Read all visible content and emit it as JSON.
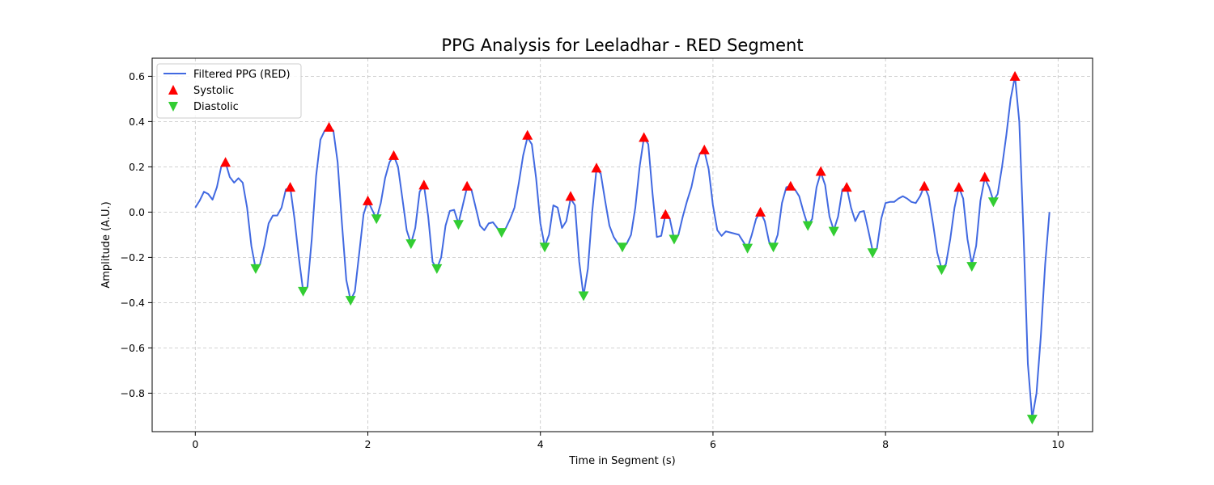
{
  "chart_data": {
    "type": "line",
    "title": "PPG Analysis for Leeladhar - RED Segment",
    "xlabel": "Time in Segment (s)",
    "ylabel": "Amplitude (A.U.)",
    "xlim": [
      -0.5,
      10.4
    ],
    "ylim": [
      -0.97,
      0.68
    ],
    "xticks": [
      0,
      2,
      4,
      6,
      8,
      10
    ],
    "xtick_labels": [
      "0",
      "2",
      "4",
      "6",
      "8",
      "10"
    ],
    "yticks": [
      -0.8,
      -0.6,
      -0.4,
      -0.2,
      0.0,
      0.2,
      0.4,
      0.6
    ],
    "ytick_labels": [
      "−0.8",
      "−0.6",
      "−0.4",
      "−0.2",
      "0.0",
      "0.2",
      "0.4",
      "0.6"
    ],
    "grid": true,
    "legend_position": "upper-left",
    "colors": {
      "line": "#4169e1",
      "systolic": "#ff0000",
      "diastolic": "#32cd32"
    },
    "series": [
      {
        "name": "Filtered PPG (RED)",
        "kind": "line",
        "points": [
          [
            0.0,
            0.02
          ],
          [
            0.05,
            0.05
          ],
          [
            0.1,
            0.09
          ],
          [
            0.15,
            0.08
          ],
          [
            0.2,
            0.055
          ],
          [
            0.25,
            0.11
          ],
          [
            0.3,
            0.2
          ],
          [
            0.35,
            0.22
          ],
          [
            0.4,
            0.155
          ],
          [
            0.45,
            0.13
          ],
          [
            0.5,
            0.15
          ],
          [
            0.55,
            0.13
          ],
          [
            0.6,
            0.02
          ],
          [
            0.65,
            -0.15
          ],
          [
            0.7,
            -0.25
          ],
          [
            0.75,
            -0.23
          ],
          [
            0.8,
            -0.15
          ],
          [
            0.85,
            -0.05
          ],
          [
            0.9,
            -0.015
          ],
          [
            0.95,
            -0.015
          ],
          [
            1.0,
            0.02
          ],
          [
            1.05,
            0.1
          ],
          [
            1.1,
            0.11
          ],
          [
            1.15,
            -0.03
          ],
          [
            1.2,
            -0.2
          ],
          [
            1.25,
            -0.35
          ],
          [
            1.3,
            -0.33
          ],
          [
            1.35,
            -0.12
          ],
          [
            1.4,
            0.16
          ],
          [
            1.45,
            0.32
          ],
          [
            1.5,
            0.36
          ],
          [
            1.55,
            0.375
          ],
          [
            1.6,
            0.36
          ],
          [
            1.65,
            0.22
          ],
          [
            1.7,
            -0.05
          ],
          [
            1.75,
            -0.3
          ],
          [
            1.8,
            -0.39
          ],
          [
            1.85,
            -0.35
          ],
          [
            1.9,
            -0.18
          ],
          [
            1.95,
            -0.01
          ],
          [
            2.0,
            0.05
          ],
          [
            2.05,
            0.01
          ],
          [
            2.1,
            -0.03
          ],
          [
            2.15,
            0.04
          ],
          [
            2.2,
            0.15
          ],
          [
            2.25,
            0.22
          ],
          [
            2.3,
            0.25
          ],
          [
            2.35,
            0.2
          ],
          [
            2.4,
            0.06
          ],
          [
            2.45,
            -0.08
          ],
          [
            2.5,
            -0.14
          ],
          [
            2.55,
            -0.07
          ],
          [
            2.6,
            0.09
          ],
          [
            2.65,
            0.12
          ],
          [
            2.7,
            -0.02
          ],
          [
            2.75,
            -0.22
          ],
          [
            2.8,
            -0.25
          ],
          [
            2.85,
            -0.2
          ],
          [
            2.9,
            -0.06
          ],
          [
            2.95,
            0.005
          ],
          [
            3.0,
            0.01
          ],
          [
            3.05,
            -0.05
          ],
          [
            3.1,
            0.03
          ],
          [
            3.15,
            0.11
          ],
          [
            3.2,
            0.1
          ],
          [
            3.25,
            0.02
          ],
          [
            3.3,
            -0.06
          ],
          [
            3.35,
            -0.08
          ],
          [
            3.4,
            -0.05
          ],
          [
            3.45,
            -0.045
          ],
          [
            3.5,
            -0.07
          ],
          [
            3.55,
            -0.09
          ],
          [
            3.6,
            -0.07
          ],
          [
            3.65,
            -0.03
          ],
          [
            3.7,
            0.02
          ],
          [
            3.75,
            0.13
          ],
          [
            3.8,
            0.25
          ],
          [
            3.85,
            0.33
          ],
          [
            3.9,
            0.3
          ],
          [
            3.95,
            0.15
          ],
          [
            4.0,
            -0.05
          ],
          [
            4.05,
            -0.15
          ],
          [
            4.1,
            -0.1
          ],
          [
            4.15,
            0.03
          ],
          [
            4.2,
            0.02
          ],
          [
            4.25,
            -0.07
          ],
          [
            4.3,
            -0.04
          ],
          [
            4.35,
            0.06
          ],
          [
            4.4,
            0.03
          ],
          [
            4.45,
            -0.22
          ],
          [
            4.5,
            -0.37
          ],
          [
            4.55,
            -0.25
          ],
          [
            4.6,
            0.0
          ],
          [
            4.65,
            0.19
          ],
          [
            4.7,
            0.17
          ],
          [
            4.75,
            0.05
          ],
          [
            4.8,
            -0.06
          ],
          [
            4.85,
            -0.11
          ],
          [
            4.9,
            -0.14
          ],
          [
            4.95,
            -0.155
          ],
          [
            5.0,
            -0.14
          ],
          [
            5.05,
            -0.1
          ],
          [
            5.1,
            0.02
          ],
          [
            5.15,
            0.2
          ],
          [
            5.2,
            0.33
          ],
          [
            5.25,
            0.3
          ],
          [
            5.3,
            0.08
          ],
          [
            5.35,
            -0.11
          ],
          [
            5.4,
            -0.105
          ],
          [
            5.45,
            -0.01
          ],
          [
            5.5,
            -0.03
          ],
          [
            5.55,
            -0.12
          ],
          [
            5.6,
            -0.1
          ],
          [
            5.65,
            -0.02
          ],
          [
            5.7,
            0.05
          ],
          [
            5.75,
            0.11
          ],
          [
            5.8,
            0.2
          ],
          [
            5.85,
            0.26
          ],
          [
            5.9,
            0.27
          ],
          [
            5.95,
            0.19
          ],
          [
            6.0,
            0.03
          ],
          [
            6.05,
            -0.08
          ],
          [
            6.1,
            -0.105
          ],
          [
            6.15,
            -0.085
          ],
          [
            6.2,
            -0.09
          ],
          [
            6.25,
            -0.095
          ],
          [
            6.3,
            -0.1
          ],
          [
            6.35,
            -0.13
          ],
          [
            6.4,
            -0.16
          ],
          [
            6.45,
            -0.1
          ],
          [
            6.5,
            -0.03
          ],
          [
            6.55,
            0.0
          ],
          [
            6.6,
            -0.04
          ],
          [
            6.65,
            -0.13
          ],
          [
            6.7,
            -0.155
          ],
          [
            6.75,
            -0.1
          ],
          [
            6.8,
            0.04
          ],
          [
            6.85,
            0.11
          ],
          [
            6.9,
            0.115
          ],
          [
            6.95,
            0.1
          ],
          [
            7.0,
            0.07
          ],
          [
            7.05,
            0.0
          ],
          [
            7.1,
            -0.06
          ],
          [
            7.15,
            -0.03
          ],
          [
            7.2,
            0.11
          ],
          [
            7.25,
            0.175
          ],
          [
            7.3,
            0.12
          ],
          [
            7.35,
            -0.02
          ],
          [
            7.4,
            -0.08
          ],
          [
            7.45,
            -0.02
          ],
          [
            7.5,
            0.1
          ],
          [
            7.55,
            0.11
          ],
          [
            7.6,
            0.02
          ],
          [
            7.65,
            -0.04
          ],
          [
            7.7,
            0.0
          ],
          [
            7.75,
            0.005
          ],
          [
            7.8,
            -0.08
          ],
          [
            7.85,
            -0.17
          ],
          [
            7.9,
            -0.16
          ],
          [
            7.95,
            -0.03
          ],
          [
            8.0,
            0.04
          ],
          [
            8.05,
            0.045
          ],
          [
            8.1,
            0.045
          ],
          [
            8.15,
            0.06
          ],
          [
            8.2,
            0.07
          ],
          [
            8.25,
            0.06
          ],
          [
            8.3,
            0.045
          ],
          [
            8.35,
            0.04
          ],
          [
            8.4,
            0.07
          ],
          [
            8.45,
            0.115
          ],
          [
            8.5,
            0.07
          ],
          [
            8.55,
            -0.05
          ],
          [
            8.6,
            -0.18
          ],
          [
            8.65,
            -0.25
          ],
          [
            8.7,
            -0.23
          ],
          [
            8.75,
            -0.12
          ],
          [
            8.8,
            0.02
          ],
          [
            8.85,
            0.11
          ],
          [
            8.9,
            0.06
          ],
          [
            8.95,
            -0.12
          ],
          [
            9.0,
            -0.23
          ],
          [
            9.05,
            -0.15
          ],
          [
            9.1,
            0.05
          ],
          [
            9.15,
            0.15
          ],
          [
            9.2,
            0.11
          ],
          [
            9.25,
            0.05
          ],
          [
            9.3,
            0.08
          ],
          [
            9.35,
            0.2
          ],
          [
            9.4,
            0.34
          ],
          [
            9.45,
            0.5
          ],
          [
            9.5,
            0.6
          ],
          [
            9.55,
            0.4
          ],
          [
            9.6,
            -0.1
          ],
          [
            9.65,
            -0.67
          ],
          [
            9.7,
            -0.91
          ],
          [
            9.75,
            -0.8
          ],
          [
            9.8,
            -0.55
          ],
          [
            9.85,
            -0.23
          ],
          [
            9.9,
            0.0
          ]
        ]
      },
      {
        "name": "Systolic",
        "kind": "marker-up",
        "points": [
          [
            0.35,
            0.22
          ],
          [
            1.1,
            0.11
          ],
          [
            1.55,
            0.375
          ],
          [
            2.0,
            0.05
          ],
          [
            2.3,
            0.25
          ],
          [
            2.65,
            0.12
          ],
          [
            3.15,
            0.115
          ],
          [
            3.85,
            0.34
          ],
          [
            4.35,
            0.07
          ],
          [
            4.65,
            0.195
          ],
          [
            5.2,
            0.33
          ],
          [
            5.45,
            -0.01
          ],
          [
            5.9,
            0.275
          ],
          [
            6.55,
            0.0
          ],
          [
            6.9,
            0.115
          ],
          [
            7.25,
            0.18
          ],
          [
            7.55,
            0.11
          ],
          [
            8.45,
            0.115
          ],
          [
            8.85,
            0.11
          ],
          [
            9.15,
            0.155
          ],
          [
            9.5,
            0.6
          ]
        ]
      },
      {
        "name": "Diastolic",
        "kind": "marker-down",
        "points": [
          [
            0.7,
            -0.25
          ],
          [
            1.25,
            -0.35
          ],
          [
            1.8,
            -0.39
          ],
          [
            2.1,
            -0.03
          ],
          [
            2.5,
            -0.14
          ],
          [
            2.8,
            -0.25
          ],
          [
            3.05,
            -0.055
          ],
          [
            3.55,
            -0.09
          ],
          [
            4.05,
            -0.155
          ],
          [
            4.5,
            -0.37
          ],
          [
            4.95,
            -0.155
          ],
          [
            5.55,
            -0.12
          ],
          [
            6.4,
            -0.16
          ],
          [
            6.7,
            -0.155
          ],
          [
            7.1,
            -0.06
          ],
          [
            7.4,
            -0.085
          ],
          [
            7.85,
            -0.18
          ],
          [
            8.65,
            -0.255
          ],
          [
            9.0,
            -0.24
          ],
          [
            9.25,
            0.045
          ],
          [
            9.7,
            -0.915
          ]
        ]
      }
    ]
  }
}
